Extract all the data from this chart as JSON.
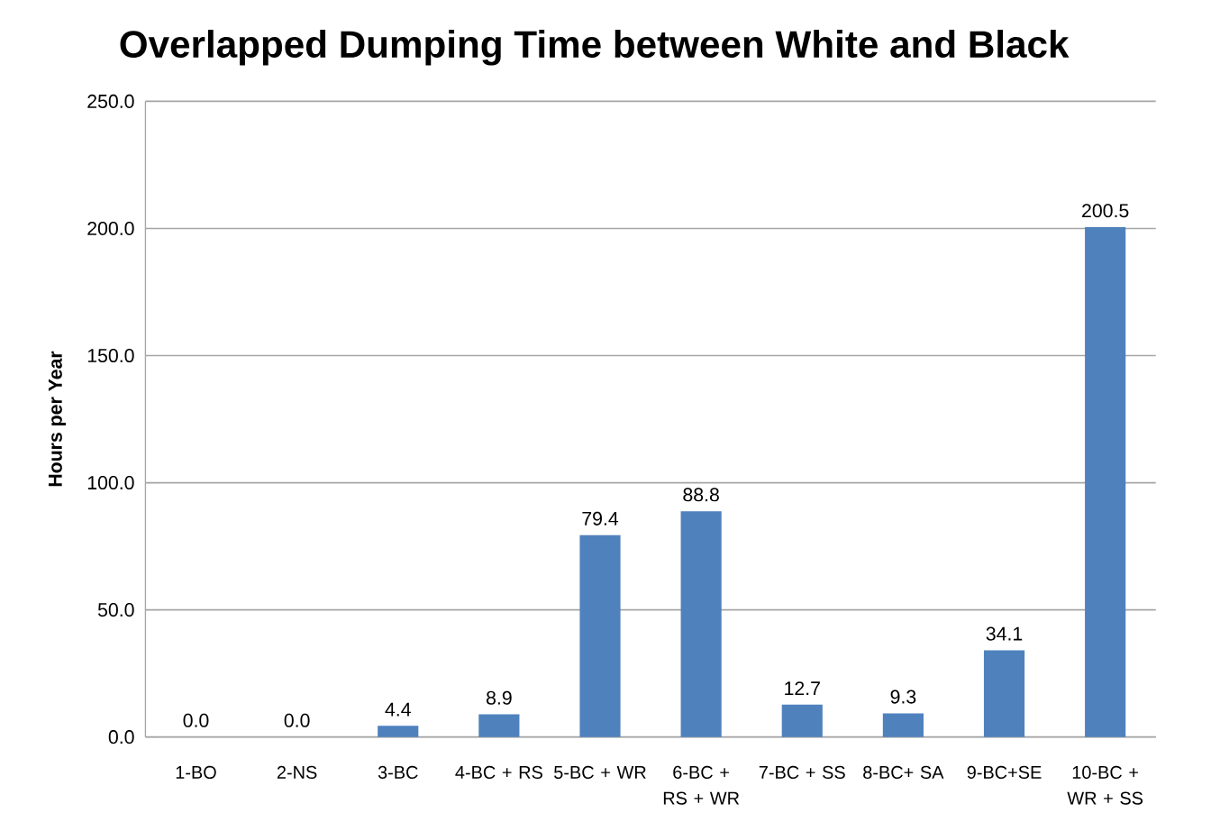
{
  "chart_data": {
    "type": "bar",
    "title": "Overlapped Dumping Time between White and Black",
    "ylabel": "Hours per Year",
    "categories": [
      "1-BO",
      "2-NS",
      "3-BC",
      "4-BC + RS",
      "5-BC + WR",
      "6-BC + RS + WR",
      "7-BC + SS",
      "8-BC+ SA",
      "9-BC+SE",
      "10-BC + WR + SS"
    ],
    "values": [
      0,
      0,
      4.4,
      8.9,
      79.4,
      88.8,
      12.7,
      9.3,
      34.1,
      200.5
    ],
    "value_labels": [
      "0.0",
      "0.0",
      "4.4",
      "8.9",
      "79.4",
      "88.8",
      "12.7",
      "9.3",
      "34.1",
      "200.5"
    ],
    "color": "#4f81bd",
    "ylim": [
      0,
      250
    ],
    "yticks": [
      {
        "value": 0,
        "label": "0.0"
      },
      {
        "value": 50,
        "label": "50.0"
      },
      {
        "value": 100,
        "label": "100.0"
      },
      {
        "value": 150,
        "label": "150.0"
      },
      {
        "value": 200,
        "label": "200.0"
      },
      {
        "value": 250,
        "label": "250.0"
      }
    ],
    "grid": "y"
  }
}
